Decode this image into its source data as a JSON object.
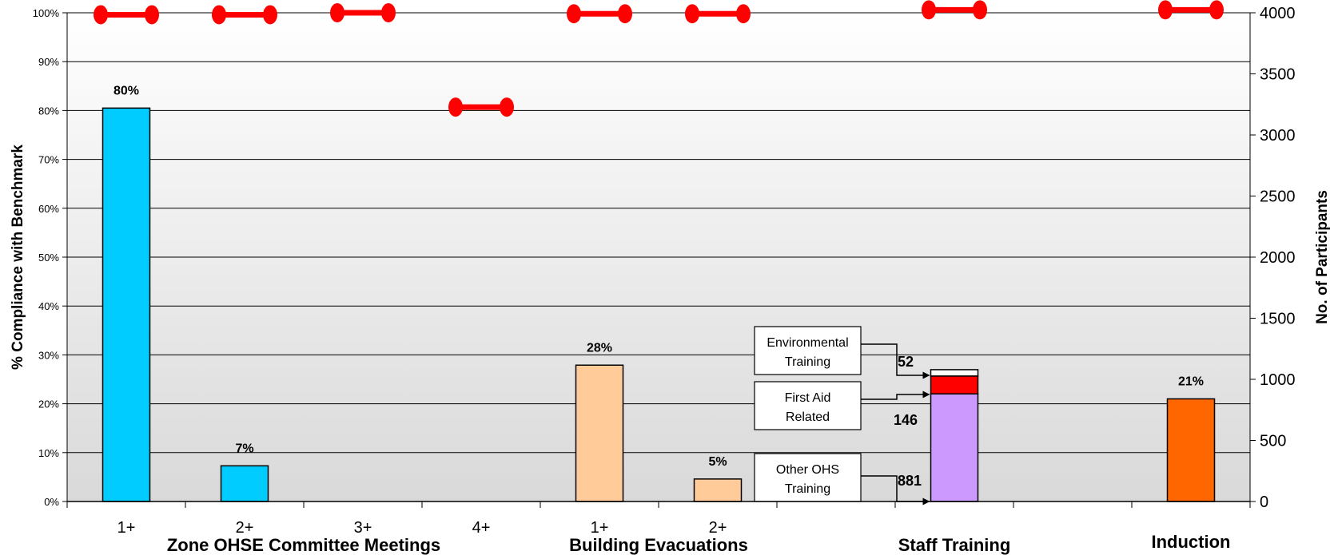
{
  "chart_data": {
    "type": "bar",
    "left_axis": {
      "label": "% Compliance with Benchmark",
      "ticks": [
        "0%",
        "10%",
        "20%",
        "30%",
        "40%",
        "50%",
        "60%",
        "70%",
        "80%",
        "90%",
        "100%"
      ],
      "ylim": [
        0,
        100
      ]
    },
    "right_axis": {
      "label": "No. of Participants",
      "ticks": [
        "0",
        "500",
        "1000",
        "1500",
        "2000",
        "2500",
        "3000",
        "3500",
        "4000"
      ],
      "ylim": [
        0,
        4000
      ]
    },
    "categories": [
      "1+",
      "2+",
      "3+",
      "4+",
      "1+",
      "2+",
      "",
      "",
      "",
      ""
    ],
    "groups": [
      {
        "label": "Zone OHSE Committee Meetings"
      },
      {
        "label": "Building Evacuations"
      },
      {
        "label": "Staff Training"
      },
      {
        "label": "Induction"
      }
    ],
    "bars": [
      {
        "category_index": 0,
        "value": 80.5,
        "label": "80%",
        "color": "#00ccff"
      },
      {
        "category_index": 1,
        "value": 7.3,
        "label": "7%",
        "color": "#00ccff"
      },
      {
        "category_index": 4,
        "value": 27.9,
        "label": "28%",
        "color": "#ffcc99"
      },
      {
        "category_index": 5,
        "value": 4.6,
        "label": "5%",
        "color": "#ffcc99"
      },
      {
        "category_index": 9,
        "value": 21,
        "label": "21%",
        "color": "#ff6600"
      }
    ],
    "stacked_bar": {
      "category_index": 7,
      "segments": [
        {
          "name": "Other OHS Training",
          "participants": 881,
          "color": "#cc99ff"
        },
        {
          "name": "First Aid Related",
          "participants": 146,
          "color": "#ff0000"
        },
        {
          "name": "Environmental Training",
          "participants": 52,
          "color": "#ffffff"
        }
      ],
      "callouts": [
        {
          "text_lines": [
            "Environmental",
            "Training"
          ],
          "value_label": "52"
        },
        {
          "text_lines": [
            "First Aid",
            "Related"
          ],
          "value_label": "146"
        },
        {
          "text_lines": [
            "Other OHS",
            "Training"
          ],
          "value_label": "881"
        }
      ]
    },
    "benchmark_markers": [
      {
        "category_index": 0,
        "value": 99.6
      },
      {
        "category_index": 1,
        "value": 99.6
      },
      {
        "category_index": 2,
        "value": 100
      },
      {
        "category_index": 3,
        "value": 80.7
      },
      {
        "category_index": 4,
        "value": 99.8
      },
      {
        "category_index": 5,
        "value": 99.8
      },
      {
        "category_index": 7,
        "value": 100.6
      },
      {
        "category_index": 9,
        "value": 100.6
      }
    ],
    "colors": {
      "benchmark": "#ff0000",
      "gridline": "#000000",
      "bar_outline": "#000000"
    },
    "grid": true
  }
}
